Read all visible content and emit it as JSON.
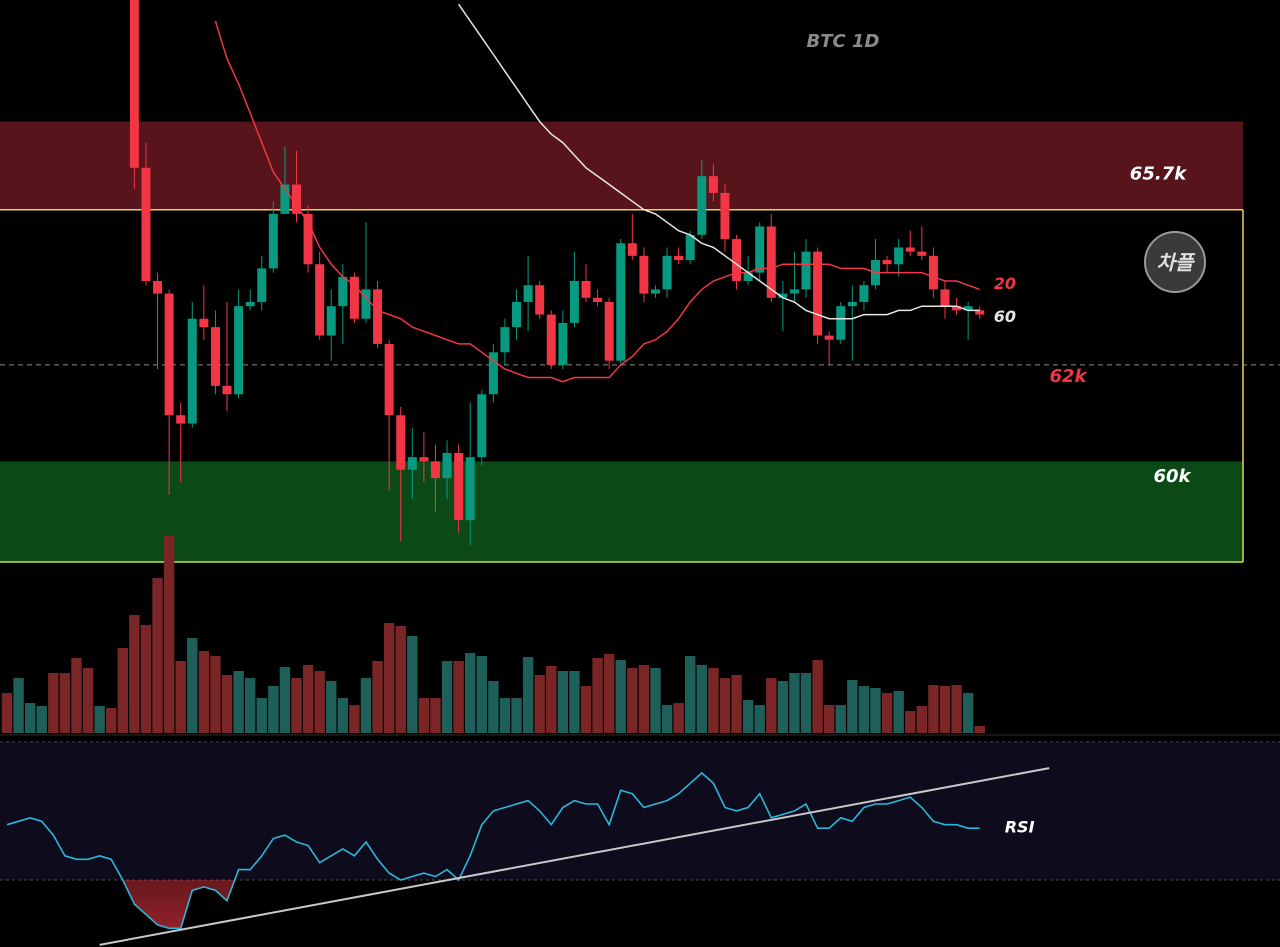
{
  "chart_data": {
    "type": "candlestick",
    "title": "BTC 1D",
    "watermark": "차플",
    "ylim": [
      57.3,
      70.7
    ],
    "up_color": "#089981",
    "down_color": "#f23645",
    "open": [
      null,
      null,
      null,
      null,
      null,
      null,
      null,
      null,
      null,
      null,
      null,
      70.7,
      66.7,
      64.0,
      63.7,
      60.8,
      60.6,
      63.1,
      62.9,
      61.5,
      61.3,
      63.4,
      63.5,
      64.3,
      65.6,
      66.3,
      65.6,
      64.4,
      62.7,
      63.4,
      64.1,
      63.1,
      63.8,
      62.5,
      60.8,
      59.5,
      59.8,
      59.7,
      59.3,
      59.9,
      58.3,
      59.8,
      61.3,
      62.3,
      62.9,
      63.5,
      63.9,
      63.2,
      62.0,
      63.0,
      64.0,
      63.6,
      63.5,
      62.1,
      64.9,
      64.6,
      63.7,
      63.8,
      64.6,
      64.5,
      65.1,
      66.5,
      66.1,
      65.0,
      64.0,
      64.2,
      65.3,
      63.6,
      63.7,
      63.8,
      64.7,
      62.7,
      62.6,
      63.4,
      63.5,
      63.9,
      64.5,
      64.4,
      64.8,
      64.7,
      64.6,
      63.8,
      63.4,
      63.3,
      63.3
    ],
    "high": [
      null,
      null,
      null,
      null,
      null,
      null,
      null,
      null,
      null,
      null,
      null,
      70.7,
      67.3,
      64.2,
      63.8,
      61.1,
      63.5,
      63.9,
      63.3,
      63.5,
      63.8,
      63.8,
      64.6,
      65.9,
      67.2,
      67.1,
      65.8,
      64.7,
      63.8,
      64.4,
      64.2,
      65.4,
      64.0,
      62.6,
      61.0,
      60.5,
      60.4,
      60.1,
      60.2,
      60.1,
      61.1,
      61.4,
      62.5,
      63.1,
      63.8,
      64.6,
      64.0,
      63.3,
      63.3,
      64.7,
      64.4,
      63.8,
      63.6,
      65.0,
      65.6,
      64.8,
      63.9,
      64.8,
      64.8,
      65.2,
      66.9,
      66.8,
      66.3,
      65.1,
      64.6,
      65.4,
      65.6,
      64.0,
      64.7,
      65.0,
      64.8,
      62.8,
      63.5,
      63.9,
      64.0,
      65.0,
      64.6,
      65.0,
      65.2,
      65.3,
      64.8,
      64.0,
      63.6,
      63.5,
      63.4
    ],
    "low": [
      null,
      null,
      null,
      null,
      null,
      null,
      null,
      null,
      null,
      null,
      null,
      66.2,
      63.9,
      61.9,
      58.9,
      59.2,
      60.5,
      62.6,
      61.3,
      60.9,
      61.2,
      63.3,
      63.3,
      64.2,
      65.6,
      65.4,
      64.2,
      62.6,
      62.1,
      62.5,
      63.0,
      63.0,
      62.4,
      59.0,
      57.8,
      58.8,
      59.2,
      58.5,
      58.8,
      58.0,
      57.7,
      59.6,
      61.1,
      62.0,
      62.6,
      62.8,
      63.1,
      61.9,
      61.9,
      62.9,
      63.5,
      63.4,
      61.9,
      62.0,
      64.5,
      63.5,
      63.6,
      63.6,
      64.4,
      64.4,
      65.0,
      65.9,
      64.7,
      63.8,
      63.9,
      64.0,
      63.5,
      62.8,
      63.5,
      63.6,
      62.5,
      62.0,
      62.5,
      62.1,
      63.3,
      63.8,
      64.2,
      64.1,
      64.6,
      64.5,
      63.6,
      63.1,
      63.2,
      62.6,
      63.1
    ],
    "close": [
      null,
      null,
      null,
      null,
      null,
      null,
      null,
      null,
      null,
      null,
      null,
      66.7,
      64.0,
      63.7,
      60.8,
      60.6,
      63.1,
      62.9,
      61.5,
      61.3,
      63.4,
      63.5,
      64.3,
      65.6,
      66.3,
      65.6,
      64.4,
      62.7,
      63.4,
      64.1,
      63.1,
      63.8,
      62.5,
      60.8,
      59.5,
      59.8,
      59.7,
      59.3,
      59.9,
      58.3,
      59.8,
      61.3,
      62.3,
      62.9,
      63.5,
      63.9,
      63.2,
      62.0,
      63.0,
      64.0,
      63.6,
      63.5,
      62.1,
      64.9,
      64.6,
      63.7,
      63.8,
      64.6,
      64.5,
      65.1,
      66.5,
      66.1,
      65.0,
      64.0,
      64.2,
      65.3,
      63.6,
      63.7,
      63.8,
      64.7,
      62.7,
      62.6,
      63.4,
      63.5,
      63.9,
      64.5,
      64.4,
      64.8,
      64.7,
      64.6,
      63.8,
      63.4,
      63.3,
      63.4,
      63.2
    ],
    "series": [
      {
        "name": "20",
        "color": "#f23645",
        "values": [
          null,
          null,
          null,
          null,
          null,
          null,
          null,
          null,
          null,
          null,
          null,
          null,
          null,
          null,
          null,
          null,
          null,
          null,
          70.2,
          69.3,
          68.7,
          68.0,
          67.3,
          66.6,
          66.2,
          65.8,
          65.4,
          64.8,
          64.4,
          64.1,
          63.9,
          63.6,
          63.3,
          63.2,
          63.1,
          62.9,
          62.8,
          62.7,
          62.6,
          62.5,
          62.5,
          62.3,
          62.1,
          61.9,
          61.8,
          61.7,
          61.7,
          61.7,
          61.6,
          61.7,
          61.7,
          61.7,
          61.7,
          62.0,
          62.2,
          62.5,
          62.6,
          62.8,
          63.1,
          63.5,
          63.8,
          64.0,
          64.1,
          64.2,
          64.2,
          64.3,
          64.3,
          64.4,
          64.4,
          64.4,
          64.4,
          64.4,
          64.3,
          64.3,
          64.3,
          64.2,
          64.2,
          64.2,
          64.2,
          64.2,
          64.1,
          64.0,
          64.0,
          63.9,
          63.8
        ]
      },
      {
        "name": "60",
        "color": "#e6e6e6",
        "values": [
          null,
          null,
          null,
          null,
          null,
          null,
          null,
          null,
          null,
          null,
          null,
          null,
          null,
          null,
          null,
          null,
          null,
          null,
          null,
          null,
          null,
          null,
          null,
          null,
          null,
          null,
          null,
          null,
          null,
          null,
          null,
          null,
          null,
          null,
          null,
          null,
          null,
          null,
          null,
          70.6,
          70.2,
          69.8,
          69.4,
          69.0,
          68.6,
          68.2,
          67.8,
          67.5,
          67.3,
          67.0,
          66.7,
          66.5,
          66.3,
          66.1,
          65.9,
          65.7,
          65.6,
          65.4,
          65.2,
          65.1,
          64.9,
          64.8,
          64.6,
          64.4,
          64.2,
          64.0,
          63.8,
          63.6,
          63.5,
          63.3,
          63.2,
          63.1,
          63.1,
          63.1,
          63.2,
          63.2,
          63.2,
          63.3,
          63.3,
          63.4,
          63.4,
          63.4,
          63.4,
          63.3,
          63.3
        ]
      }
    ],
    "resistance_zone": [
      65.7,
      67.8
    ],
    "support_zone": [
      57.3,
      59.7
    ],
    "levels": [
      {
        "value": 65.7,
        "label": "65.7k"
      },
      {
        "value": 62,
        "label": "62k"
      },
      {
        "value": 60,
        "label": "60k"
      }
    ],
    "volume": [
      40,
      55,
      30,
      27,
      60,
      60,
      75,
      65,
      27,
      25,
      85,
      118,
      108,
      155,
      197,
      72,
      95,
      82,
      77,
      58,
      62,
      55,
      35,
      47,
      66,
      55,
      68,
      62,
      52,
      35,
      28,
      55,
      72,
      110,
      107,
      97,
      35,
      35,
      72,
      72,
      80,
      77,
      52,
      35,
      35,
      76,
      58,
      67,
      62,
      62,
      47,
      75,
      79,
      73,
      65,
      68,
      65,
      28,
      30,
      77,
      68,
      65,
      55,
      58,
      33,
      28,
      55,
      52,
      60,
      60,
      73,
      28,
      28,
      53,
      47,
      45,
      40,
      42,
      22,
      27,
      48,
      47,
      48,
      40,
      7
    ],
    "volume_up": [
      0,
      1,
      1,
      1,
      0,
      0,
      0,
      0,
      1,
      0,
      0,
      0,
      0,
      0,
      0,
      0,
      1,
      0,
      0,
      0,
      1,
      1,
      1,
      1,
      1,
      0,
      0,
      0,
      1,
      1,
      0,
      1,
      0,
      0,
      0,
      1,
      0,
      0,
      1,
      0,
      1,
      1,
      1,
      1,
      1,
      1,
      0,
      0,
      1,
      1,
      0,
      0,
      0,
      1,
      0,
      0,
      1,
      1,
      0,
      1,
      1,
      0,
      0,
      0,
      1,
      1,
      0,
      1,
      1,
      1,
      0,
      0,
      1,
      1,
      1,
      1,
      0,
      1,
      0,
      0,
      0,
      0,
      0,
      1,
      0
    ],
    "vlim": [
      0,
      200
    ],
    "volume_up_color": "#1e5f5a",
    "volume_down_color": "#7a2626",
    "rsi": {
      "name": "RSI",
      "color": "#2bb7d9",
      "ylim": [
        10,
        72
      ],
      "levels": [
        70,
        30
      ],
      "values": [
        46,
        47,
        48,
        47,
        43,
        37,
        36,
        36,
        37,
        36,
        30,
        23,
        20,
        17,
        16,
        16,
        27,
        28,
        27,
        24,
        33,
        33,
        37,
        42,
        43,
        41,
        40,
        35,
        37,
        39,
        37,
        41,
        36,
        32,
        30,
        31,
        32,
        31,
        33,
        30,
        37,
        46,
        50,
        51,
        52,
        53,
        50,
        46,
        51,
        53,
        52,
        52,
        46,
        56,
        55,
        51,
        52,
        53,
        55,
        58,
        61,
        58,
        51,
        50,
        51,
        55,
        48,
        49,
        50,
        52,
        45,
        45,
        48,
        47,
        51,
        52,
        52,
        53,
        54,
        51,
        47,
        46,
        46,
        45,
        45
      ],
      "trendline": {
        "x": [
          8,
          90
        ],
        "values": [
          11.2,
          62.4
        ]
      }
    }
  }
}
